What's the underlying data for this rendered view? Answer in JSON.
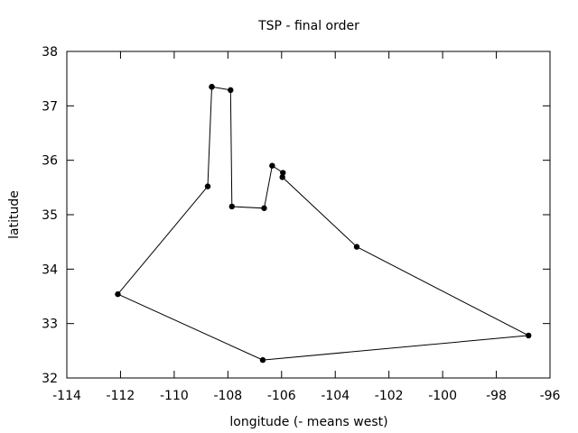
{
  "chart_data": {
    "type": "line",
    "title": "TSP - final order",
    "xlabel": "longitude (- means west)",
    "ylabel": "latitude",
    "xlim": [
      -114,
      -96
    ],
    "ylim": [
      32,
      38
    ],
    "xticks": [
      -114,
      -112,
      -110,
      -108,
      -106,
      -104,
      -102,
      -100,
      -98,
      -96
    ],
    "yticks": [
      32,
      33,
      34,
      35,
      36,
      37,
      38
    ],
    "xtick_labels": [
      "-114",
      "-112",
      "-110",
      "-108",
      "-106",
      "-104",
      "-102",
      "-100",
      "-98",
      "-96"
    ],
    "ytick_labels": [
      "32",
      "33",
      "34",
      "35",
      "36",
      "37",
      "38"
    ],
    "grid": false,
    "legend": "none",
    "series": [
      {
        "color": "#000000",
        "markers": true,
        "points": [
          {
            "x": -108.6,
            "y": 37.35
          },
          {
            "x": -107.9,
            "y": 37.29
          },
          {
            "x": -107.85,
            "y": 35.15
          },
          {
            "x": -106.65,
            "y": 35.12
          },
          {
            "x": -106.35,
            "y": 35.9
          },
          {
            "x": -105.95,
            "y": 35.77
          },
          {
            "x": -105.97,
            "y": 35.69
          },
          {
            "x": -103.2,
            "y": 34.41
          },
          {
            "x": -96.8,
            "y": 32.78
          },
          {
            "x": -106.7,
            "y": 32.33
          },
          {
            "x": -112.1,
            "y": 33.54
          },
          {
            "x": -108.75,
            "y": 35.52
          },
          {
            "x": -108.6,
            "y": 37.35
          }
        ]
      }
    ]
  }
}
